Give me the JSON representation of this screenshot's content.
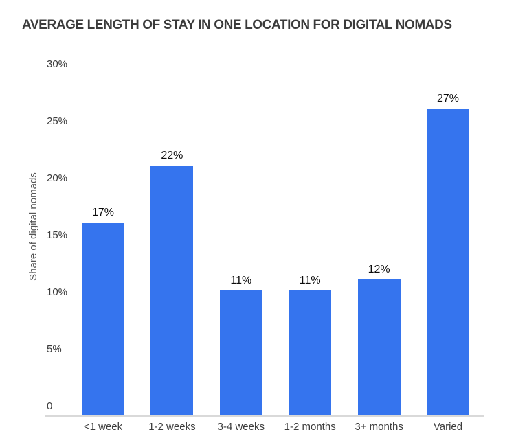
{
  "chart_data": {
    "type": "bar",
    "title": "AVERAGE LENGTH OF STAY IN ONE LOCATION FOR DIGITAL NOMADS",
    "xlabel": "",
    "ylabel": "Share of digital nomads",
    "categories": [
      "<1 week",
      "1-2 weeks",
      "3-4 weeks",
      "1-2 months",
      "3+ months",
      "Varied"
    ],
    "values": [
      17,
      22,
      11,
      11,
      12,
      27
    ],
    "bar_labels": [
      "17%",
      "22%",
      "11%",
      "11%",
      "12%",
      "27%"
    ],
    "y_ticks": [
      {
        "label": "30%",
        "value": 30
      },
      {
        "label": "25%",
        "value": 25
      },
      {
        "label": "20%",
        "value": 20
      },
      {
        "label": "15%",
        "value": 15
      },
      {
        "label": "10%",
        "value": 10
      },
      {
        "label": "5%",
        "value": 5
      },
      {
        "label": "0",
        "value": 0
      }
    ],
    "ylim": [
      0,
      30
    ],
    "grid": false,
    "legend": false,
    "bar_color": "#3574EE",
    "axis_line_color": "#d9d9d9",
    "label_color": "#0c0c0c"
  }
}
